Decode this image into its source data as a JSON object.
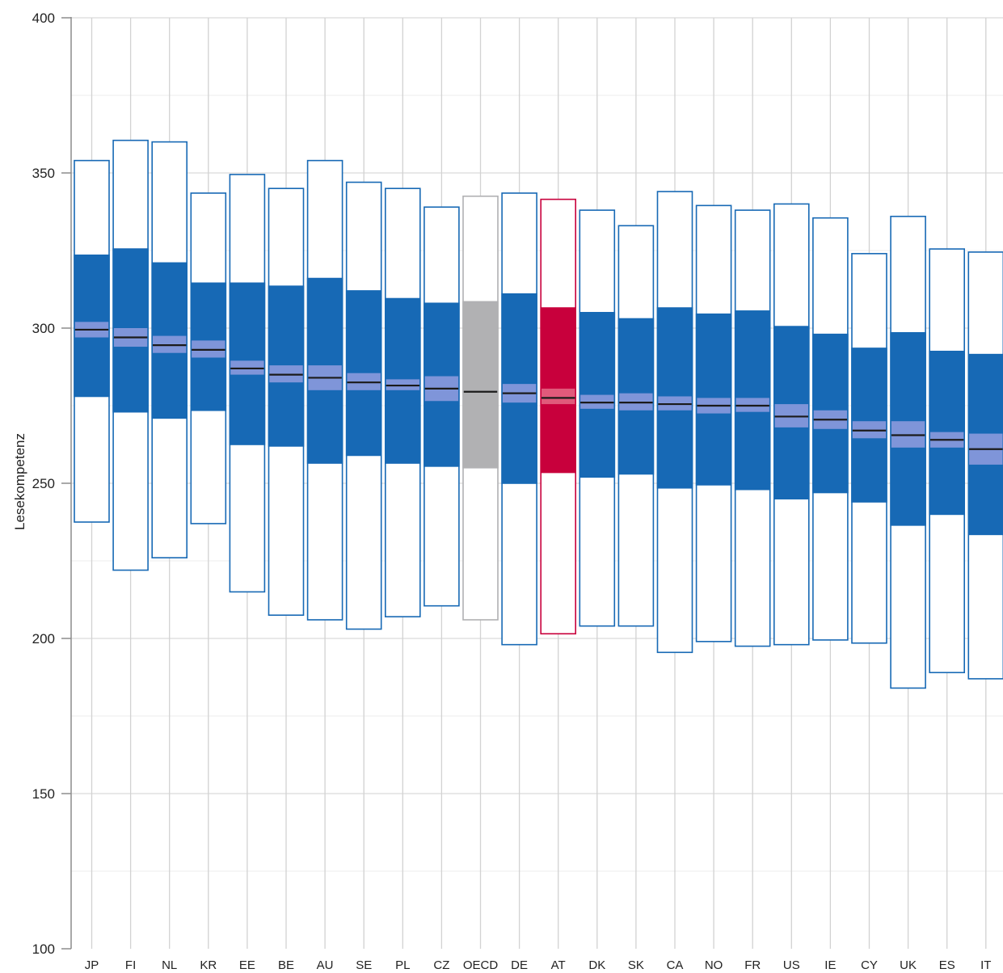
{
  "chart_data": {
    "type": "box",
    "ylabel": "Lesekompetenz",
    "xlabel": "",
    "ylim": [
      100,
      400
    ],
    "yticks": [
      100,
      150,
      200,
      250,
      300,
      350,
      400
    ],
    "grid": "major-horizontal-and-vertical",
    "categories": [
      "JP",
      "FI",
      "NL",
      "KR",
      "EE",
      "BE",
      "AU",
      "SE",
      "PL",
      "CZ",
      "OECD",
      "DE",
      "AT",
      "DK",
      "SK",
      "CA",
      "NO",
      "FR",
      "US",
      "IE",
      "CY",
      "UK",
      "ES",
      "IT"
    ],
    "series": [
      {
        "category": "JP",
        "p5": 237.5,
        "p25": 278,
        "mean": 299.5,
        "ci_low": 297,
        "ci_high": 302,
        "p75": 323.5,
        "p95": 354,
        "group": "country"
      },
      {
        "category": "FI",
        "p5": 222,
        "p25": 273,
        "mean": 297,
        "ci_low": 294,
        "ci_high": 300,
        "p75": 325.5,
        "p95": 360.5,
        "group": "country"
      },
      {
        "category": "NL",
        "p5": 226,
        "p25": 271,
        "mean": 294.5,
        "ci_low": 292,
        "ci_high": 297.5,
        "p75": 321,
        "p95": 360,
        "group": "country"
      },
      {
        "category": "KR",
        "p5": 237,
        "p25": 273.5,
        "mean": 293,
        "ci_low": 290.5,
        "ci_high": 296,
        "p75": 314.5,
        "p95": 343.5,
        "group": "country"
      },
      {
        "category": "EE",
        "p5": 215,
        "p25": 262.5,
        "mean": 287,
        "ci_low": 285,
        "ci_high": 289.5,
        "p75": 314.5,
        "p95": 349.5,
        "group": "country"
      },
      {
        "category": "BE",
        "p5": 207.5,
        "p25": 262,
        "mean": 285,
        "ci_low": 282.5,
        "ci_high": 288,
        "p75": 313.5,
        "p95": 345,
        "group": "country"
      },
      {
        "category": "AU",
        "p5": 206,
        "p25": 256.5,
        "mean": 284,
        "ci_low": 280,
        "ci_high": 288,
        "p75": 316,
        "p95": 354,
        "group": "country"
      },
      {
        "category": "SE",
        "p5": 203,
        "p25": 259,
        "mean": 282.5,
        "ci_low": 280,
        "ci_high": 285.5,
        "p75": 312,
        "p95": 347,
        "group": "country"
      },
      {
        "category": "PL",
        "p5": 207,
        "p25": 256.5,
        "mean": 281.5,
        "ci_low": 280,
        "ci_high": 283.5,
        "p75": 309.5,
        "p95": 345,
        "group": "country"
      },
      {
        "category": "CZ",
        "p5": 210.5,
        "p25": 255.5,
        "mean": 280.5,
        "ci_low": 276.5,
        "ci_high": 284.5,
        "p75": 308,
        "p95": 339,
        "group": "country"
      },
      {
        "category": "OECD",
        "p5": 206,
        "p25": 255,
        "mean": 279.5,
        "ci_low": 279,
        "ci_high": 280,
        "p75": 308.5,
        "p95": 342.5,
        "group": "average"
      },
      {
        "category": "DE",
        "p5": 198,
        "p25": 250,
        "mean": 279,
        "ci_low": 276,
        "ci_high": 282,
        "p75": 311,
        "p95": 343.5,
        "group": "country"
      },
      {
        "category": "AT",
        "p5": 201.5,
        "p25": 253.5,
        "mean": 277.5,
        "ci_low": 275.5,
        "ci_high": 280.5,
        "p75": 306.5,
        "p95": 341.5,
        "group": "highlight"
      },
      {
        "category": "DK",
        "p5": 204,
        "p25": 252,
        "mean": 276,
        "ci_low": 274,
        "ci_high": 278.5,
        "p75": 305,
        "p95": 338,
        "group": "country"
      },
      {
        "category": "SK",
        "p5": 204,
        "p25": 253,
        "mean": 276,
        "ci_low": 273.5,
        "ci_high": 279,
        "p75": 303,
        "p95": 333,
        "group": "country"
      },
      {
        "category": "CA",
        "p5": 195.5,
        "p25": 248.5,
        "mean": 275.5,
        "ci_low": 273.5,
        "ci_high": 278,
        "p75": 306.5,
        "p95": 344,
        "group": "country"
      },
      {
        "category": "NO",
        "p5": 199,
        "p25": 249.5,
        "mean": 275,
        "ci_low": 272.5,
        "ci_high": 277.5,
        "p75": 304.5,
        "p95": 339.5,
        "group": "country"
      },
      {
        "category": "FR",
        "p5": 197.5,
        "p25": 248,
        "mean": 275,
        "ci_low": 273,
        "ci_high": 277.5,
        "p75": 305.5,
        "p95": 338,
        "group": "country"
      },
      {
        "category": "US",
        "p5": 198,
        "p25": 245,
        "mean": 271.5,
        "ci_low": 268,
        "ci_high": 275.5,
        "p75": 300.5,
        "p95": 340,
        "group": "country"
      },
      {
        "category": "IE",
        "p5": 199.5,
        "p25": 247,
        "mean": 270.5,
        "ci_low": 267.5,
        "ci_high": 273.5,
        "p75": 298,
        "p95": 335.5,
        "group": "country"
      },
      {
        "category": "CY",
        "p5": 198.5,
        "p25": 244,
        "mean": 267,
        "ci_low": 264.5,
        "ci_high": 270,
        "p75": 293.5,
        "p95": 324,
        "group": "country"
      },
      {
        "category": "UK",
        "p5": 184,
        "p25": 236.5,
        "mean": 265.5,
        "ci_low": 261.5,
        "ci_high": 270,
        "p75": 298.5,
        "p95": 336,
        "group": "country"
      },
      {
        "category": "ES",
        "p5": 189,
        "p25": 240,
        "mean": 264,
        "ci_low": 261.5,
        "ci_high": 266.5,
        "p75": 292.5,
        "p95": 325.5,
        "group": "country"
      },
      {
        "category": "IT",
        "p5": 187,
        "p25": 233.5,
        "mean": 261,
        "ci_low": 256,
        "ci_high": 266,
        "p75": 291.5,
        "p95": 324.5,
        "group": "country"
      }
    ],
    "colors": {
      "country_fill": "#1769b5",
      "country_ci": "#7f95d9",
      "average_fill": "#b1b1b3",
      "average_outline": "#b1b1b3",
      "highlight_fill": "#c8003c",
      "highlight_ci": "#e05a7b",
      "mean_line": "#1b1b1b",
      "grid": "#d2d2d2",
      "axis": "#8c8c8c"
    }
  }
}
